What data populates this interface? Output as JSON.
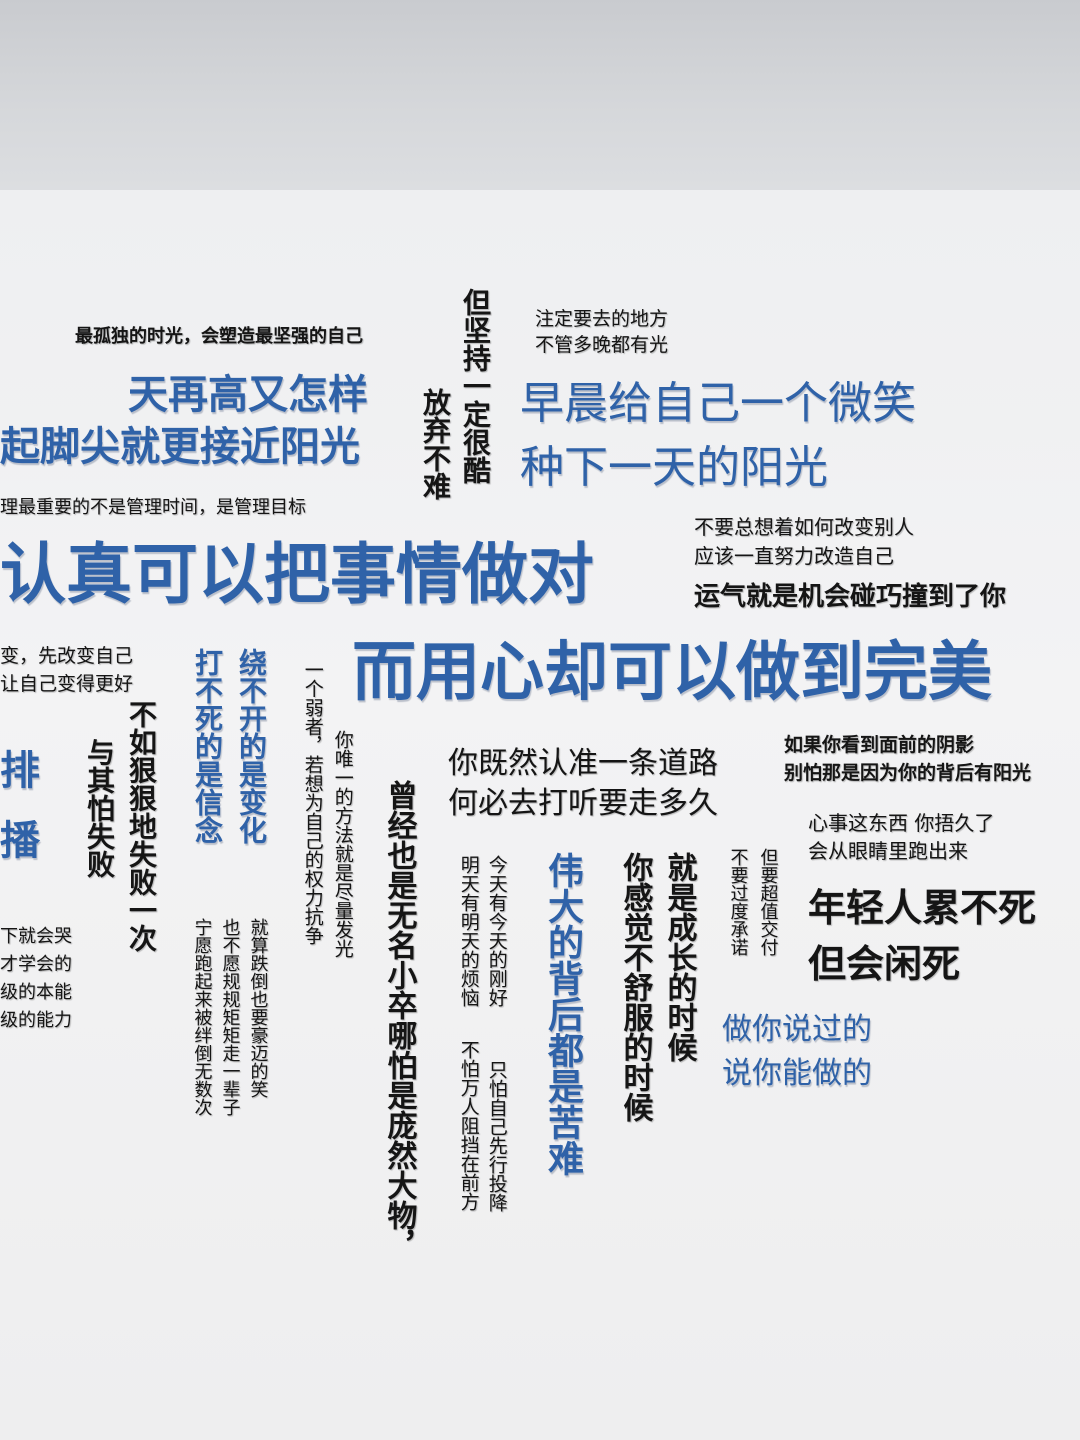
{
  "slogans": {
    "s1": "最孤独的时光，会塑造最坚强的自己",
    "s2a": "天再高又怎样",
    "s2b": "起脚尖就更接近阳光",
    "s3": "理最重要的不是管理时间，是管理目标",
    "s4a": "放弃不难",
    "s4b": "但坚持一定很酷",
    "s5a": "注定要去的地方",
    "s5b": "不管多晚都有光",
    "s6a": "早晨给自己一个微笑",
    "s6b": "种下一天的阳光",
    "s7a": "不要总想着如何改变别人",
    "s7b": "应该一直努力改造自己",
    "s8": "运气就是机会碰巧撞到了你",
    "s9": "认真可以把事情做对",
    "s10": "而用心却可以做到完美",
    "s11a": "变，先改变自己",
    "s11b": "让自己变得更好",
    "s12a": "排",
    "s12b": "播",
    "s13a": "与其怕失败",
    "s13b": "不如狠狠地失败一次",
    "s14a": "下就会哭",
    "s14b": "才学会的",
    "s14c": "级的本能",
    "s14d": "级的能力",
    "s15a": "打不死的是信念",
    "s15b": "绕不开的是变化",
    "s16a": "宁愿跑起来被绊倒无数次",
    "s16b": "也不愿规规矩矩走一辈子",
    "s16c": "就算跌倒也要豪迈的笑",
    "s17a": "一个弱者，若想为自己的权力抗争",
    "s17b": "你唯一的方法就是尽量发光",
    "s18a": "曾经也是无名小卒",
    "s18b": "哪怕是庞然大物，",
    "s19a": "你既然认准一条道路",
    "s19b": "何必去打听要走多久",
    "s20a": "明天有明天的烦恼",
    "s20b": "今天有今天的刚好",
    "s21a": "不怕万人阻挡在前方",
    "s21b": "只怕自己先行投降",
    "s22": "伟大的背后都是苦难",
    "s23a": "你感觉不舒服的时候",
    "s23b": "就是成长的时候",
    "s24a": "不要过度承诺",
    "s24b": "但要超值交付",
    "s25a": "如果你看到面前的阴影",
    "s25b": "别怕那是因为你的背后有阳光",
    "s26a": "心事这东西 你捂久了",
    "s26b": "会从眼睛里跑出来",
    "s27a": "年轻人累不死",
    "s27b": "但会闲死",
    "s28a": "做你说过的",
    "s28b": "说你能做的"
  },
  "colors": {
    "text_dark": "#151515",
    "text_blue": "#2f62a8",
    "wall": "#f1f1f2",
    "ceiling": "#cfd1d4"
  }
}
